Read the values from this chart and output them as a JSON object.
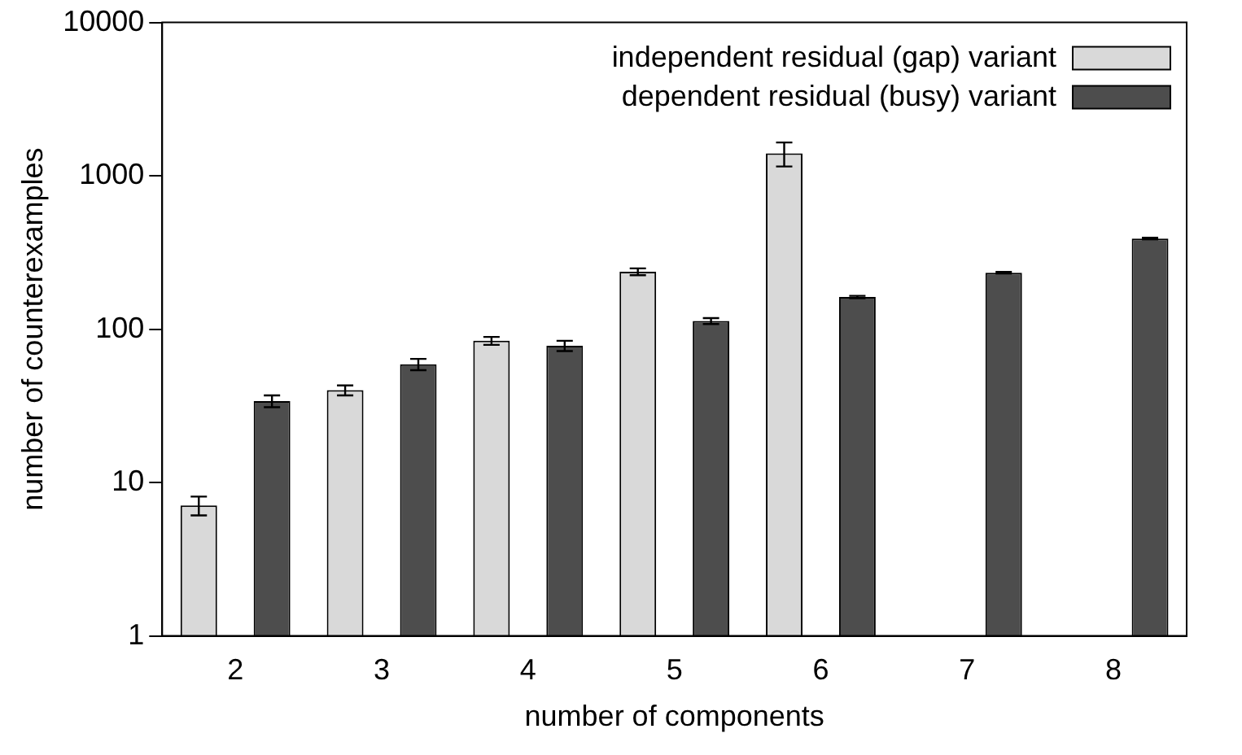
{
  "chart_data": {
    "type": "bar",
    "xlabel": "number of components",
    "ylabel": "number of counterexamples",
    "categories": [
      "2",
      "3",
      "4",
      "5",
      "6",
      "7",
      "8"
    ],
    "series": [
      {
        "name": "independent residual (gap) variant",
        "color": "#d9d9d9",
        "values": [
          7.1,
          40,
          84,
          237,
          1400,
          null,
          null
        ],
        "errors": [
          1,
          3,
          5,
          12,
          [
            1150,
            1650
          ],
          null,
          null
        ]
      },
      {
        "name": "dependent residual (busy) variant",
        "color": "#4d4d4d",
        "values": [
          34,
          59,
          78,
          113,
          162,
          233,
          390
        ],
        "errors": [
          3,
          5,
          6,
          5,
          3,
          3,
          5
        ]
      }
    ],
    "log": true,
    "ylim": [
      1,
      10000
    ],
    "yticks": [
      1,
      10,
      100,
      1000,
      10000
    ],
    "grid": false,
    "legend": "top right"
  }
}
